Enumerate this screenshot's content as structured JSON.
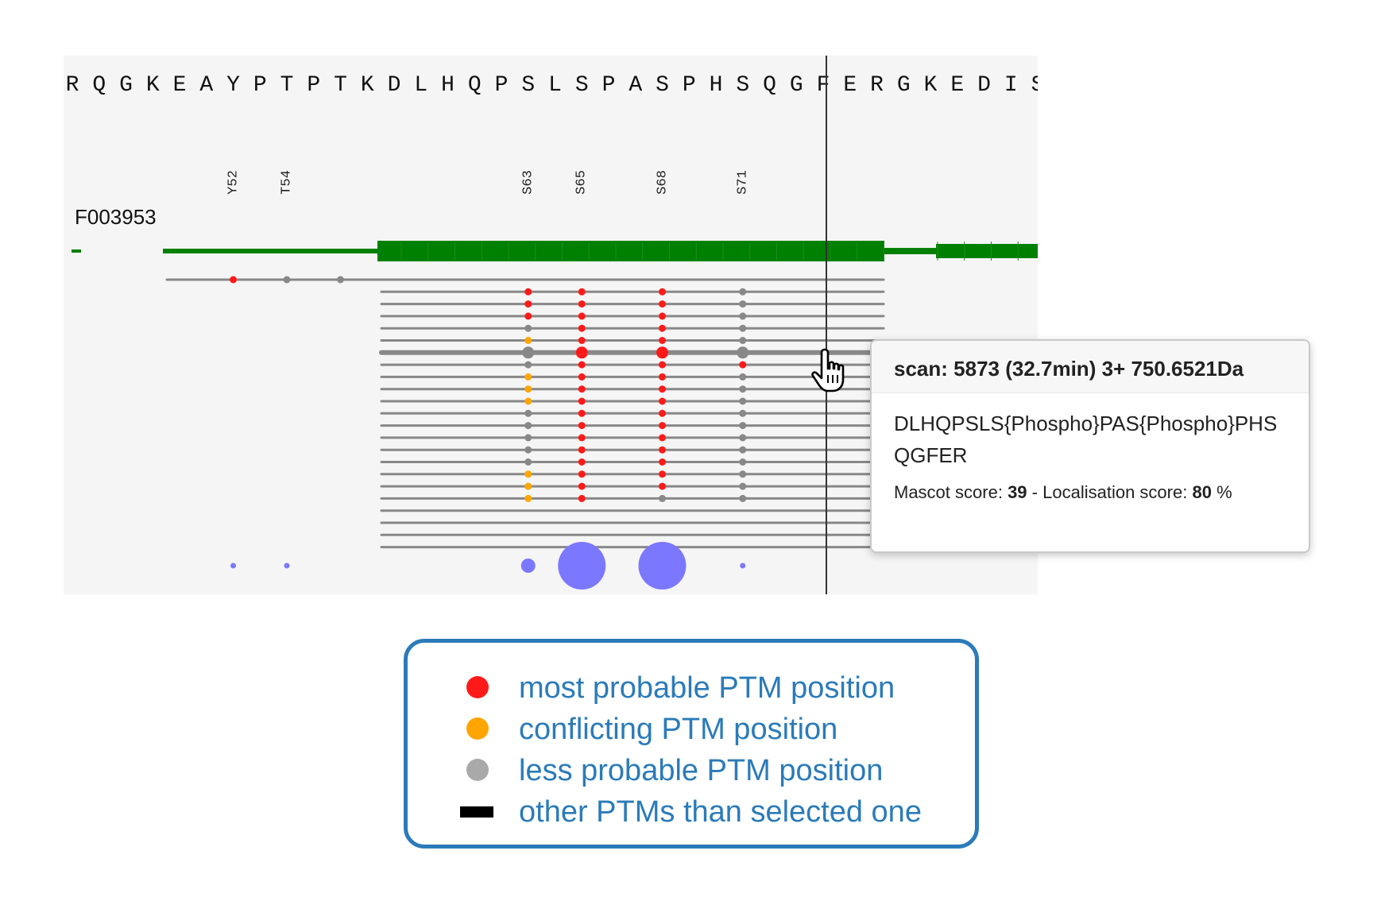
{
  "viewer": {
    "sequence": [
      "R",
      "Q",
      "G",
      "K",
      "E",
      "A",
      "Y",
      "P",
      "T",
      "P",
      "T",
      "K",
      "D",
      "L",
      "H",
      "Q",
      "P",
      "S",
      "L",
      "S",
      "P",
      "A",
      "S",
      "P",
      "H",
      "S",
      "Q",
      "G",
      "F",
      "E",
      "R",
      "G",
      "K",
      "E",
      "D",
      "I",
      "S"
    ],
    "site_labels": [
      "Y52",
      "T54",
      "S63",
      "S65",
      "S68",
      "S71"
    ],
    "protein_name": "F003953"
  },
  "colors": {
    "most_probable": "#ff1a1a",
    "conflicting": "#ffa500",
    "less_probable": "#888888",
    "protein_track": "#008000",
    "site_bubble": "#7b78ff",
    "legend_accent": "#2b7bb9"
  },
  "tooltip": {
    "title": "scan: 5873 (32.7min) 3+ 750.6521Da",
    "peptide": "DLHQPSLS{Phospho}PAS{Phospho}PHSQGFER",
    "mascot_label": "Mascot score:",
    "mascot_value": "39",
    "separator": "-",
    "localisation_label": "Localisation score:",
    "localisation_value": "80",
    "localisation_unit": "%"
  },
  "legend": {
    "items": [
      {
        "label": "most probable PTM position",
        "marker": "dot",
        "color": "#ff1a1a"
      },
      {
        "label": "conflicting PTM position",
        "marker": "dot",
        "color": "#ffa500"
      },
      {
        "label": "less probable PTM position",
        "marker": "dot",
        "color": "#a9a9a9"
      },
      {
        "label": "other PTMs than selected one",
        "marker": "bar",
        "color": "#000000"
      }
    ]
  }
}
